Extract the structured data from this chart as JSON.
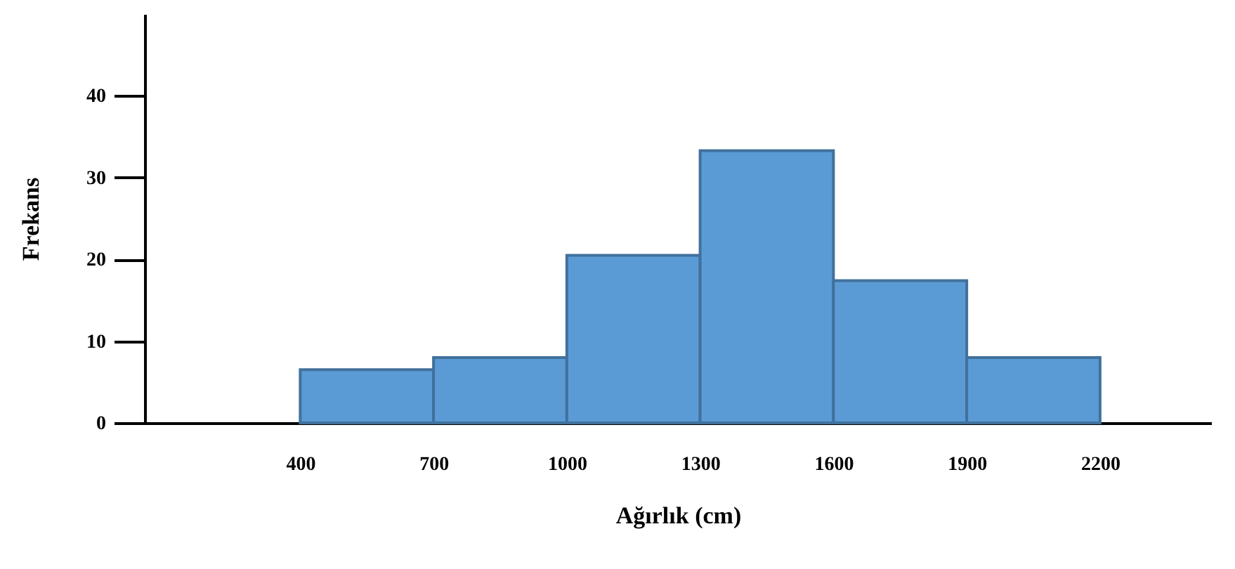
{
  "chart_data": {
    "type": "histogram",
    "xlabel": "Ağırlık (cm)",
    "ylabel": "Frekans",
    "bins": [
      400,
      700,
      1000,
      1300,
      1600,
      1900,
      2200
    ],
    "values": [
      6.5,
      8,
      20.5,
      33.3,
      17.4,
      8
    ],
    "color": "#5b9bd5",
    "xlim": [
      50,
      2450
    ],
    "xticks": [
      400,
      700,
      1000,
      1300,
      1600,
      1900,
      2200
    ],
    "ylim": [
      0,
      50
    ],
    "yticks": [
      0,
      10,
      20,
      30,
      40
    ],
    "grid": false
  }
}
